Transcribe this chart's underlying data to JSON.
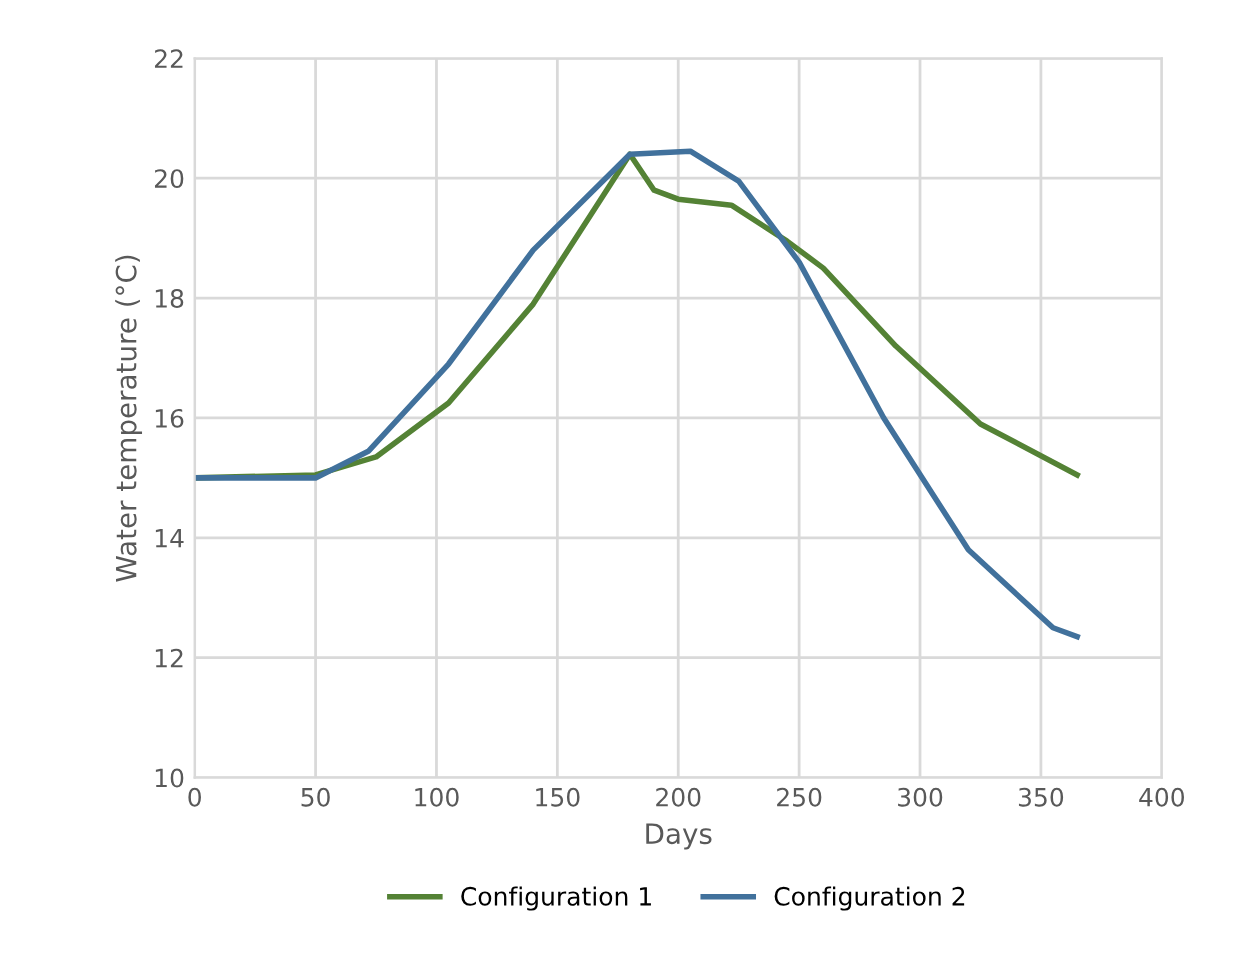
{
  "chart_data": {
    "type": "line",
    "xlabel": "Days",
    "ylabel": "Water temperature (°C)",
    "xlim": [
      0,
      400
    ],
    "xticks": [
      0,
      50,
      100,
      150,
      200,
      250,
      300,
      350,
      400
    ],
    "ylim": [
      10,
      22
    ],
    "yticks": [
      10,
      12,
      14,
      16,
      18,
      20,
      22
    ],
    "grid": true,
    "legend": "bottom",
    "marker": "none",
    "line_style": "solid",
    "series": [
      {
        "name": "Configuration 1",
        "color": "#548235",
        "x": [
          0,
          50,
          75,
          105,
          140,
          180,
          190,
          200,
          222,
          245,
          260,
          290,
          325,
          365
        ],
        "values": [
          15,
          15.05,
          15.35,
          16.25,
          17.9,
          20.4,
          19.8,
          19.65,
          19.55,
          18.95,
          18.5,
          17.2,
          15.9,
          15.05
        ]
      },
      {
        "name": "Configuration 2",
        "color": "#41719c",
        "x": [
          0,
          50,
          72,
          105,
          140,
          180,
          205,
          225,
          250,
          285,
          320,
          355,
          365
        ],
        "values": [
          15,
          15,
          15.45,
          16.9,
          18.8,
          20.4,
          20.45,
          19.95,
          18.6,
          16.0,
          13.8,
          12.5,
          12.35
        ]
      }
    ]
  }
}
